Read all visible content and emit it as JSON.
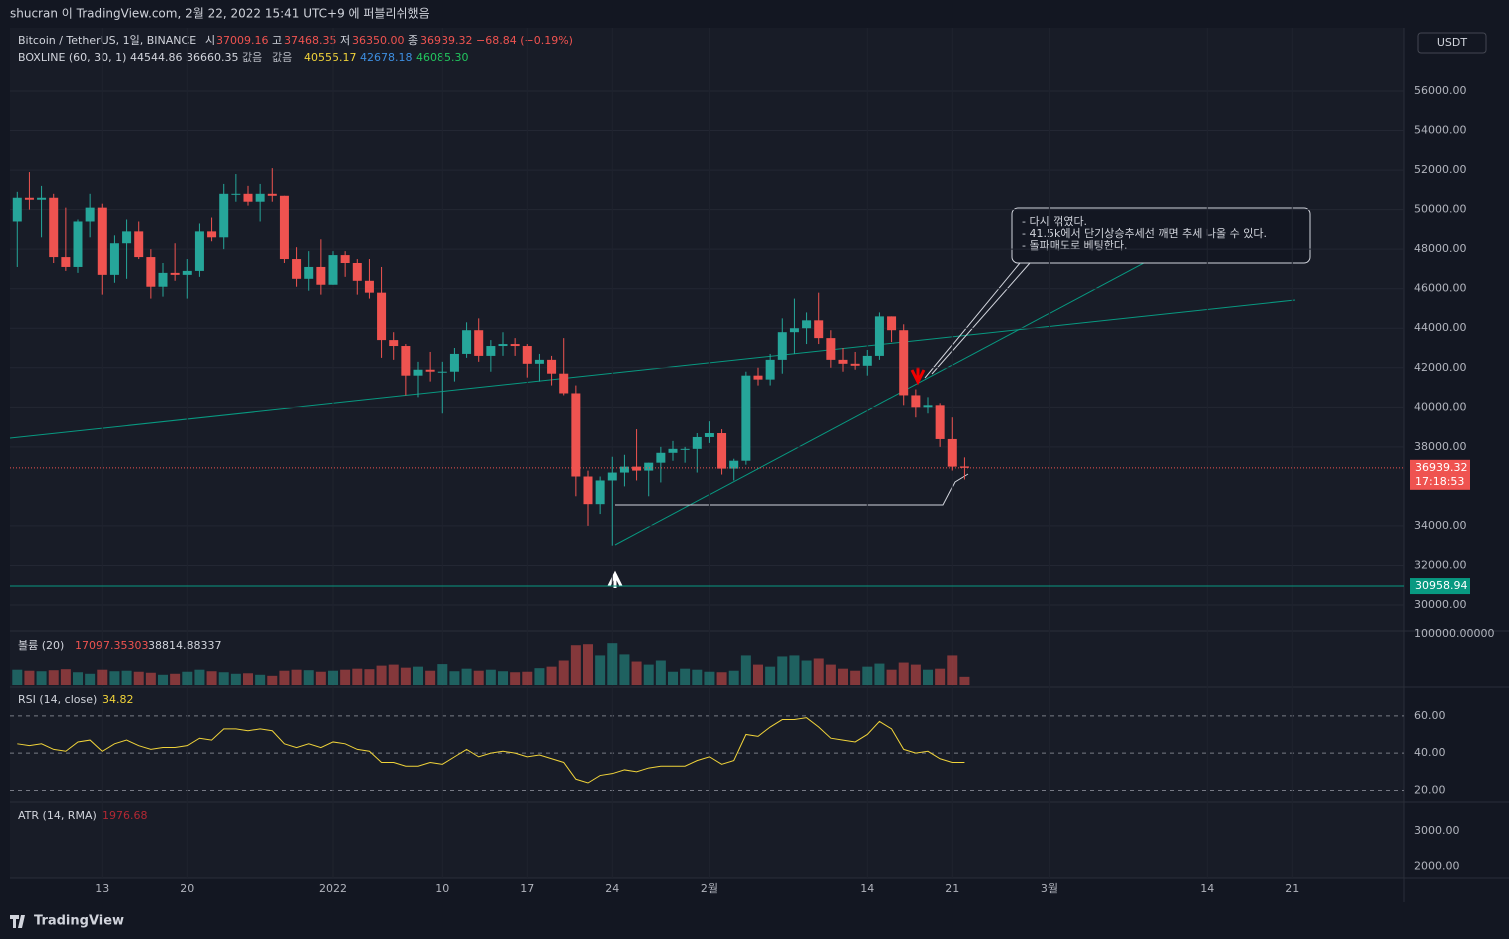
{
  "header": {
    "title": "shucran 이 TradingView.com, 2월 22, 2022 15:41 UTC+9 에 퍼블리쉬했음"
  },
  "legend": {
    "symbol": "Bitcoin / TetherUS, 1일, BINANCE",
    "o_label": "시",
    "o": "37009.16",
    "h_label": "고",
    "h": "37468.35",
    "l_label": "저",
    "l": "36350.00",
    "c_label": "종",
    "c": "36939.32",
    "change": "−68.84 (−0.19%)"
  },
  "boxline": {
    "name": "BOXLINE (60, 30, 1)",
    "v1": "44544.86",
    "v2": "36660.35",
    "v3": "값음",
    "v4": "값음",
    "v5": "40555.17",
    "v6": "42678.18",
    "v7": "46085.30"
  },
  "currency": "USDT",
  "annotation": [
    "- 다시 꺾였다.",
    "- 41.5k에서 단기상승추세선 깨면 추세 나올 수 있다.",
    "- 돌파매도로 베팅한다."
  ],
  "footer": "TradingView",
  "chart_data": {
    "type": "candlestick",
    "open": [
      49400,
      50600,
      50500,
      50600,
      47600,
      47100,
      49400,
      50100,
      46700,
      48300,
      48900,
      47600,
      46100,
      46800,
      46700,
      46900,
      48900,
      48600,
      50800,
      50800,
      50400,
      50800,
      50700,
      47500,
      46500,
      47100,
      46200,
      47700,
      47300,
      46400,
      45800,
      43400,
      43100,
      41600,
      41900,
      41800,
      41800,
      42700,
      43900,
      42600,
      43100,
      43200,
      43100,
      42200,
      42400,
      41700,
      40700,
      36500,
      35100,
      36300,
      36700,
      37000,
      36800,
      37200,
      37700,
      37900,
      37900,
      38500,
      38700,
      36900,
      37300,
      41600,
      41400,
      42400,
      43800,
      44000,
      44400,
      43500,
      42400,
      42200,
      42100,
      42600,
      44600,
      43900,
      40600,
      40000,
      40100,
      38400,
      37009.16
    ],
    "high": [
      50900,
      51900,
      51200,
      50800,
      50100,
      49500,
      50800,
      50300,
      48700,
      49500,
      49400,
      48000,
      47300,
      48300,
      47500,
      49300,
      49600,
      51300,
      51800,
      51200,
      51300,
      52100,
      50700,
      48100,
      47900,
      48500,
      47900,
      47900,
      47500,
      47500,
      47100,
      43800,
      43200,
      42300,
      42800,
      42300,
      43000,
      44300,
      44500,
      43400,
      43800,
      43500,
      43200,
      42700,
      42600,
      43500,
      41100,
      36800,
      36500,
      37500,
      37600,
      38900,
      37200,
      38000,
      38300,
      38000,
      38700,
      39300,
      38900,
      37400,
      41800,
      42000,
      42700,
      44500,
      45500,
      44800,
      45800,
      43900,
      43000,
      42800,
      42900,
      44800,
      44600,
      44200,
      40900,
      40500,
      40200,
      39500,
      37468.35
    ],
    "low": [
      47100,
      50000,
      48600,
      47300,
      46900,
      46800,
      48600,
      45700,
      46300,
      46500,
      47500,
      45500,
      45600,
      46400,
      45500,
      46600,
      48400,
      48000,
      50400,
      50200,
      49400,
      50400,
      47300,
      46100,
      45900,
      45700,
      46200,
      46600,
      45700,
      45500,
      42500,
      42400,
      40600,
      40500,
      41300,
      39700,
      41300,
      42500,
      42300,
      41800,
      42600,
      42600,
      41500,
      41300,
      41100,
      40600,
      35500,
      34000,
      34600,
      33000,
      36000,
      36300,
      35500,
      36200,
      37300,
      37200,
      36700,
      38200,
      36600,
      36300,
      37100,
      41100,
      41100,
      41700,
      42700,
      43200,
      43200,
      42000,
      41800,
      41900,
      41600,
      42400,
      43300,
      40100,
      39500,
      39700,
      38000,
      36800,
      36350
    ],
    "close": [
      50600,
      50500,
      50600,
      47600,
      47100,
      49400,
      50100,
      46700,
      48300,
      48900,
      47600,
      46100,
      46800,
      46700,
      46900,
      48900,
      48600,
      50800,
      50800,
      50400,
      50800,
      50700,
      47500,
      46500,
      47100,
      46200,
      47700,
      47300,
      46400,
      45800,
      43400,
      43100,
      41600,
      41900,
      41800,
      41800,
      42700,
      43900,
      42600,
      43100,
      43200,
      43100,
      42200,
      42400,
      41700,
      40700,
      36500,
      35100,
      36300,
      36700,
      37000,
      36800,
      37200,
      37700,
      37900,
      37900,
      38500,
      38700,
      36900,
      37300,
      41600,
      41400,
      42400,
      43800,
      44000,
      44400,
      43500,
      42400,
      42200,
      42100,
      42600,
      44600,
      43900,
      40600,
      40000,
      40100,
      38400,
      37000,
      36939.32
    ],
    "up_color": "#26a69a",
    "down_color": "#ef5350",
    "ylim": [
      28736,
      59187
    ],
    "yticks": [
      {
        "value": 56000,
        "label": "56000.00"
      },
      {
        "value": 54000,
        "label": "54000.00"
      },
      {
        "value": 52000,
        "label": "52000.00"
      },
      {
        "value": 50000,
        "label": "50000.00"
      },
      {
        "value": 48000,
        "label": "48000.00"
      },
      {
        "value": 46000,
        "label": "46000.00"
      },
      {
        "value": 44000,
        "label": "44000.00"
      },
      {
        "value": 42000,
        "label": "42000.00"
      },
      {
        "value": 40000,
        "label": "40000.00"
      },
      {
        "value": 38000,
        "label": "38000.00"
      },
      {
        "value": 34000,
        "label": "34000.00"
      },
      {
        "value": 32000,
        "label": "32000.00"
      },
      {
        "value": 30000,
        "label": "30000.00"
      }
    ],
    "last_price": {
      "value": 36939.32,
      "label": "36939.32",
      "countdown": "17:18:53"
    },
    "hline": {
      "value": 30958.94,
      "label": "30958.94",
      "color": "#089981"
    },
    "xlim": [
      -0.6,
      114.2
    ],
    "xticks": [
      {
        "value": 7,
        "label": "13"
      },
      {
        "value": 14,
        "label": "20"
      },
      {
        "value": 26,
        "label": "2022"
      },
      {
        "value": 35,
        "label": "10"
      },
      {
        "value": 42,
        "label": "17"
      },
      {
        "value": 49,
        "label": "24"
      },
      {
        "value": 57,
        "label": "2월"
      },
      {
        "value": 70,
        "label": "14"
      },
      {
        "value": 77,
        "label": "21"
      },
      {
        "value": 85,
        "label": "3월"
      },
      {
        "value": 98,
        "label": "14"
      },
      {
        "value": 105,
        "label": "21"
      }
    ],
    "volume": {
      "name": "볼륨 (20)",
      "v1": "17097.35303",
      "v2": "38814.88337",
      "ylim": [
        0,
        100000
      ],
      "yticks": [
        {
          "value": 100000,
          "label": "100000.00000"
        }
      ],
      "values": [
        30000,
        28000,
        27000,
        29000,
        31000,
        25000,
        22000,
        30000,
        27000,
        28000,
        26000,
        24000,
        20000,
        22000,
        26000,
        30000,
        27000,
        25000,
        22000,
        23000,
        20000,
        18000,
        28000,
        30000,
        29000,
        26000,
        28000,
        30000,
        32000,
        31000,
        38000,
        40000,
        34000,
        36000,
        28000,
        41000,
        27000,
        32000,
        28000,
        30000,
        27000,
        25000,
        26000,
        33000,
        36000,
        48000,
        78000,
        80000,
        58000,
        82000,
        60000,
        46000,
        40000,
        48000,
        26000,
        32000,
        30000,
        26000,
        25000,
        28000,
        58000,
        40000,
        36000,
        56000,
        58000,
        48000,
        52000,
        40000,
        32000,
        28000,
        36000,
        42000,
        30000,
        44000,
        40000,
        30000,
        32000,
        58000,
        16000
      ]
    },
    "rsi": {
      "name": "RSI (14, close)",
      "last": "34.82",
      "color": "#f0d33a",
      "ylim": [
        14.9,
        74.9
      ],
      "yticks": [
        {
          "value": 60,
          "label": "60.00"
        },
        {
          "value": 40,
          "label": "40.00"
        },
        {
          "value": 20,
          "label": "20.00"
        }
      ],
      "values": [
        45,
        44,
        45,
        42,
        41,
        46,
        47,
        41,
        45,
        47,
        44,
        42,
        43,
        43,
        44,
        48,
        47,
        53,
        53,
        52,
        53,
        52,
        45,
        43,
        45,
        43,
        46,
        45,
        42,
        41,
        35,
        35,
        33,
        33,
        35,
        34,
        38,
        42,
        38,
        40,
        41,
        40,
        38,
        39,
        37,
        35,
        26,
        24,
        28,
        29,
        31,
        30,
        32,
        33,
        33,
        33,
        36,
        38,
        34,
        36,
        50,
        49,
        54,
        58,
        58,
        59,
        54,
        48,
        47,
        46,
        50,
        57,
        53,
        42,
        40,
        41,
        37,
        35,
        35
      ]
    },
    "atr": {
      "name": "ATR (14, RMA)",
      "last": "1976.68",
      "ylim": [
        1700,
        3800
      ],
      "yticks": [
        {
          "value": 3000,
          "label": "3000.00"
        },
        {
          "value": 2000,
          "label": "2000.00"
        }
      ]
    }
  }
}
